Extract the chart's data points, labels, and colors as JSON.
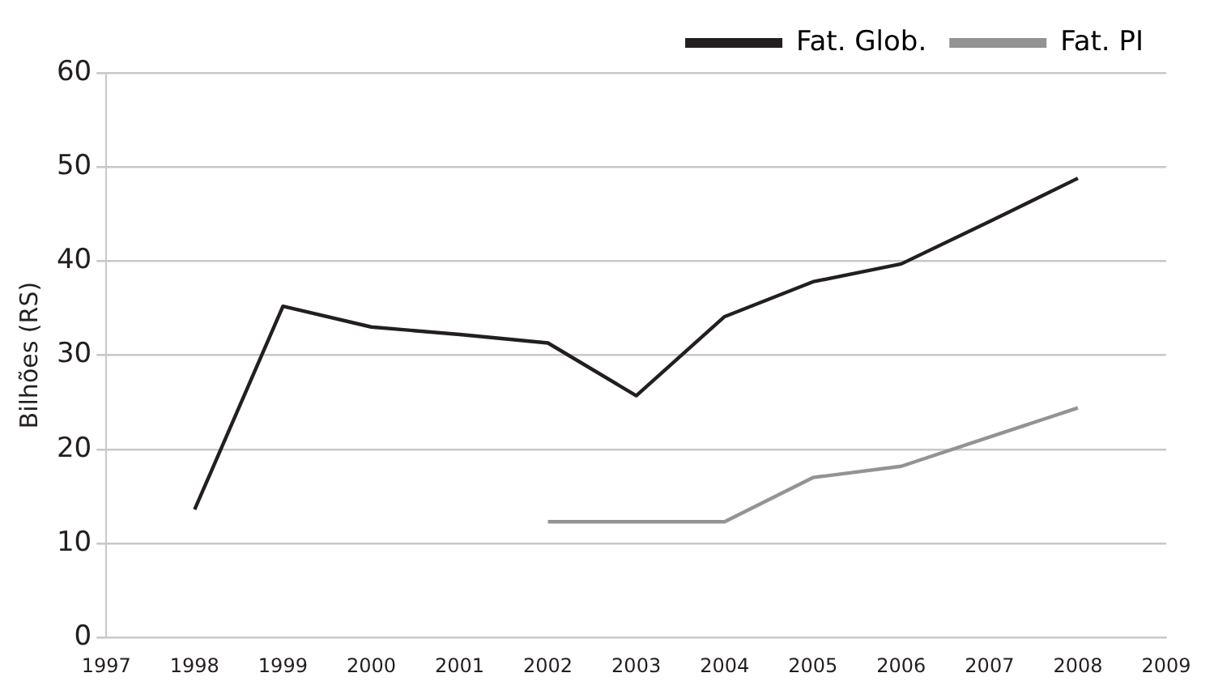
{
  "chart_data": {
    "type": "line",
    "ylabel": "Bilhões (RS)",
    "categories": [
      "1997",
      "1998",
      "1999",
      "2000",
      "2001",
      "2002",
      "2003",
      "2004",
      "2005",
      "2006",
      "2007",
      "2008",
      "2009"
    ],
    "series": [
      {
        "name": "Fat. Glob.",
        "color": "#231f20",
        "values": [
          null,
          13.6,
          35.2,
          33.0,
          32.2,
          31.3,
          25.7,
          34.1,
          37.8,
          39.7,
          44.2,
          48.8,
          null
        ]
      },
      {
        "name": "Fat. PI",
        "color": "#939393",
        "values": [
          null,
          null,
          null,
          null,
          null,
          12.3,
          12.3,
          12.3,
          17.0,
          18.2,
          21.3,
          24.4,
          null
        ]
      }
    ],
    "ylim": [
      0,
      60
    ],
    "yticks": [
      0,
      10,
      20,
      30,
      40,
      50,
      60
    ],
    "grid": "y",
    "legend": "top right",
    "marker": "none",
    "line_style": "solid"
  }
}
